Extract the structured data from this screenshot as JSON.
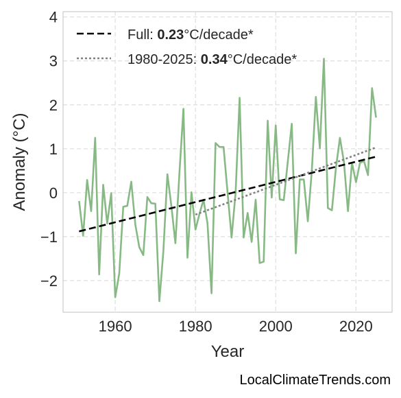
{
  "chart_data": {
    "type": "line",
    "title": "",
    "xlabel": "Year",
    "ylabel": "Anomaly (°C)",
    "xlim": [
      1947,
      2029
    ],
    "ylim": [
      -2.72,
      4.12
    ],
    "xticks": [
      {
        "value": 1960,
        "label": "1960"
      },
      {
        "value": 1980,
        "label": "1980"
      },
      {
        "value": 2000,
        "label": "2000"
      },
      {
        "value": 2020,
        "label": "2020"
      }
    ],
    "yticks": [
      {
        "value": -2,
        "label": "−2"
      },
      {
        "value": -1,
        "label": "−1"
      },
      {
        "value": 0,
        "label": "0"
      },
      {
        "value": 1,
        "label": "1"
      },
      {
        "value": 2,
        "label": "2"
      },
      {
        "value": 3,
        "label": "3"
      },
      {
        "value": 4,
        "label": "4"
      }
    ],
    "grid": true,
    "legend_position": "top-left",
    "series": [
      {
        "color": "#86b983",
        "style": "solid",
        "x": [
          1951,
          1952,
          1953,
          1954,
          1955,
          1956,
          1957,
          1958,
          1959,
          1960,
          1961,
          1962,
          1963,
          1964,
          1965,
          1966,
          1967,
          1968,
          1969,
          1970,
          1971,
          1972,
          1973,
          1974,
          1975,
          1976,
          1977,
          1978,
          1979,
          1980,
          1981,
          1982,
          1983,
          1984,
          1985,
          1986,
          1987,
          1988,
          1989,
          1990,
          1991,
          1992,
          1993,
          1994,
          1995,
          1996,
          1997,
          1998,
          1999,
          2000,
          2001,
          2002,
          2003,
          2004,
          2005,
          2006,
          2007,
          2008,
          2009,
          2010,
          2011,
          2012,
          2013,
          2014,
          2015,
          2016,
          2017,
          2018,
          2019,
          2020,
          2021,
          2022,
          2023,
          2024,
          2025
        ],
        "y": [
          -0.19,
          -0.98,
          0.29,
          -0.42,
          1.25,
          -1.86,
          0.18,
          -0.7,
          -0.01,
          -2.38,
          -1.84,
          -0.32,
          -0.3,
          0.25,
          -0.72,
          -1.24,
          -1.42,
          -0.1,
          -0.24,
          -0.25,
          -2.47,
          -1.33,
          0.42,
          -0.31,
          -1.15,
          0.45,
          1.91,
          -1.48,
          0.01,
          -0.84,
          -0.48,
          -0.16,
          -0.7,
          -2.29,
          1.13,
          1.04,
          1.04,
          0.0,
          -1.02,
          0.0,
          2.16,
          -1.02,
          -0.46,
          -1.12,
          -0.16,
          -1.6,
          -1.57,
          1.64,
          -0.11,
          1.53,
          -0.15,
          -0.17,
          0.7,
          1.57,
          -1.38,
          0.3,
          0.3,
          -0.65,
          0.51,
          2.18,
          1.01,
          3.05,
          -0.35,
          -0.4,
          0.56,
          1.25,
          0.7,
          -0.42,
          0.68,
          0.24,
          0.68,
          0.72,
          0.4,
          2.38,
          1.71
        ]
      },
      {
        "name": "Full",
        "color": "#000000",
        "style": "dashed",
        "x": [
          1951,
          2025
        ],
        "y": [
          -0.88,
          0.82
        ]
      },
      {
        "name": "1980-2025",
        "color": "#808080",
        "style": "dotted",
        "x": [
          1980,
          2025
        ],
        "y": [
          -0.5,
          1.03
        ]
      }
    ],
    "legend": [
      {
        "prefix": "Full: ",
        "value": "0.23",
        "suffix": "°C/decade*",
        "color": "#000000",
        "style": "dashed"
      },
      {
        "prefix": "1980-2025: ",
        "value": "0.34",
        "suffix": "°C/decade*",
        "color": "#808080",
        "style": "dotted"
      }
    ]
  },
  "credit": "LocalClimateTrends.com"
}
